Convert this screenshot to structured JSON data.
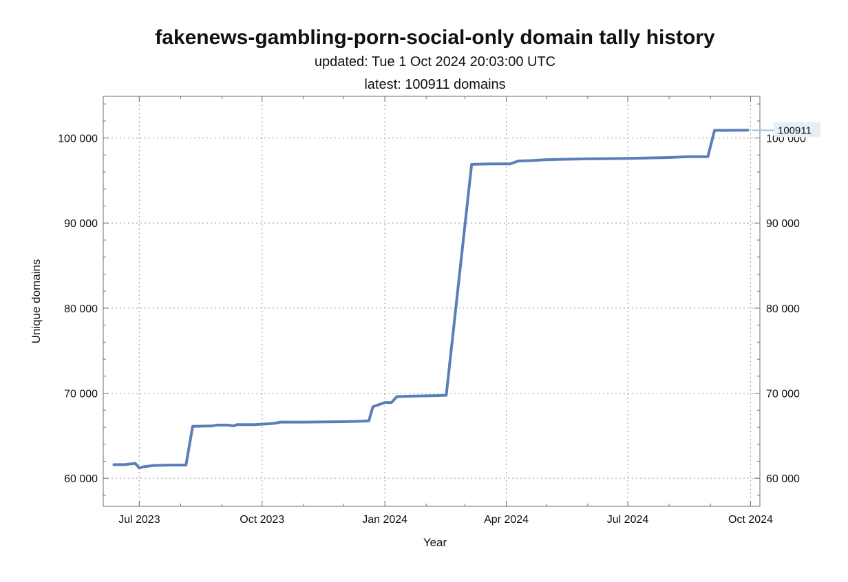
{
  "chart_data": {
    "type": "line",
    "title": "fakenews-gambling-porn-social-only domain tally history",
    "subtitle_updated": "updated: Tue 1 Oct 2024 20:03:00 UTC",
    "subtitle_latest": "latest: 100911 domains",
    "xlabel": "Year",
    "ylabel": "Unique domains",
    "xlim": [
      "2023-06-04",
      "2024-10-08"
    ],
    "ylim": [
      56700,
      104900
    ],
    "grid": true,
    "x_ticks": [
      {
        "date": "2023-07-01",
        "label": "Jul 2023"
      },
      {
        "date": "2023-10-01",
        "label": "Oct 2023"
      },
      {
        "date": "2024-01-01",
        "label": "Jan 2024"
      },
      {
        "date": "2024-04-01",
        "label": "Apr 2024"
      },
      {
        "date": "2024-07-01",
        "label": "Jul 2024"
      },
      {
        "date": "2024-10-01",
        "label": "Oct 2024"
      }
    ],
    "x_minor_ticks": [
      "2023-08-01",
      "2023-09-01",
      "2023-11-01",
      "2023-12-01",
      "2024-02-01",
      "2024-03-01",
      "2024-05-01",
      "2024-06-01",
      "2024-08-01",
      "2024-09-01"
    ],
    "y_ticks_left": [
      {
        "value": 60000,
        "label": "60 000"
      },
      {
        "value": 70000,
        "label": "70 000"
      },
      {
        "value": 80000,
        "label": "80 000"
      },
      {
        "value": 90000,
        "label": "90 000"
      },
      {
        "value": 100000,
        "label": "100 000"
      }
    ],
    "y_ticks_right": [
      {
        "value": 60000,
        "label": "60 000"
      },
      {
        "value": 70000,
        "label": "70 000"
      },
      {
        "value": 80000,
        "label": "80 000"
      },
      {
        "value": 90000,
        "label": "90 000"
      },
      {
        "value": 100000,
        "label": "100 000"
      }
    ],
    "series": [
      {
        "color": "#5a7fb8",
        "points": [
          [
            "2023-06-12",
            61600
          ],
          [
            "2023-06-20",
            61600
          ],
          [
            "2023-06-28",
            61750
          ],
          [
            "2023-07-01",
            61200
          ],
          [
            "2023-07-04",
            61350
          ],
          [
            "2023-07-12",
            61500
          ],
          [
            "2023-07-25",
            61550
          ],
          [
            "2023-08-05",
            61550
          ],
          [
            "2023-08-10",
            66100
          ],
          [
            "2023-08-25",
            66150
          ],
          [
            "2023-08-28",
            66250
          ],
          [
            "2023-09-05",
            66250
          ],
          [
            "2023-09-10",
            66150
          ],
          [
            "2023-09-12",
            66300
          ],
          [
            "2023-09-25",
            66300
          ],
          [
            "2023-10-05",
            66400
          ],
          [
            "2023-10-10",
            66450
          ],
          [
            "2023-10-15",
            66600
          ],
          [
            "2023-11-01",
            66600
          ],
          [
            "2023-11-30",
            66650
          ],
          [
            "2023-12-15",
            66700
          ],
          [
            "2023-12-20",
            66750
          ],
          [
            "2023-12-23",
            68400
          ],
          [
            "2024-01-01",
            68900
          ],
          [
            "2024-01-06",
            68900
          ],
          [
            "2024-01-10",
            69600
          ],
          [
            "2024-01-20",
            69650
          ],
          [
            "2024-02-05",
            69700
          ],
          [
            "2024-02-16",
            69750
          ],
          [
            "2024-03-06",
            96900
          ],
          [
            "2024-03-20",
            96950
          ],
          [
            "2024-04-01",
            96950
          ],
          [
            "2024-04-04",
            96950
          ],
          [
            "2024-04-10",
            97300
          ],
          [
            "2024-04-20",
            97350
          ],
          [
            "2024-05-01",
            97450
          ],
          [
            "2024-05-15",
            97500
          ],
          [
            "2024-06-01",
            97550
          ],
          [
            "2024-07-01",
            97600
          ],
          [
            "2024-08-01",
            97700
          ],
          [
            "2024-08-15",
            97800
          ],
          [
            "2024-08-30",
            97800
          ],
          [
            "2024-09-04",
            100900
          ],
          [
            "2024-09-10",
            100900
          ],
          [
            "2024-09-29",
            100911
          ]
        ]
      }
    ],
    "latest_callout": "100911"
  }
}
